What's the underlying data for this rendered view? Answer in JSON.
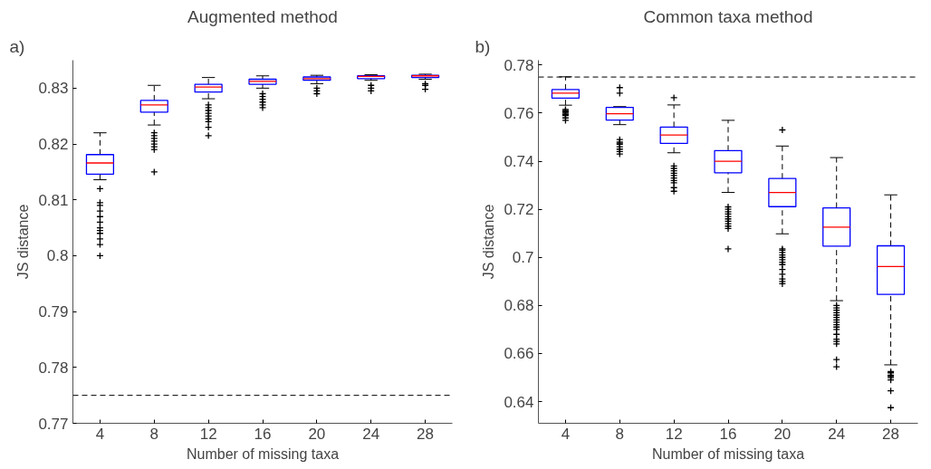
{
  "chart_data": [
    {
      "type": "box",
      "title": "Augmented method",
      "xlabel": "Number of missing taxa",
      "ylabel": "JS distance",
      "annotations": [
        "a)"
      ],
      "categories": [
        "4",
        "8",
        "12",
        "16",
        "20",
        "24",
        "28"
      ],
      "color": "#0000ff",
      "boxes": [
        {
          "low": 0.8136,
          "q1": 0.8146,
          "median": 0.8166,
          "q3": 0.8181,
          "high": 0.822,
          "outliers": [
            0.812,
            0.8095,
            0.809,
            0.808,
            0.807,
            0.806,
            0.805,
            0.8045,
            0.804,
            0.803,
            0.802,
            0.8
          ]
        },
        {
          "low": 0.8234,
          "q1": 0.8257,
          "median": 0.827,
          "q3": 0.8278,
          "high": 0.8305,
          "outliers": [
            0.822,
            0.8215,
            0.821,
            0.8205,
            0.82,
            0.8195,
            0.819,
            0.815
          ]
        },
        {
          "low": 0.8281,
          "q1": 0.8293,
          "median": 0.8302,
          "q3": 0.8307,
          "high": 0.8319,
          "outliers": [
            0.827,
            0.8265,
            0.826,
            0.8255,
            0.825,
            0.8245,
            0.824,
            0.823,
            0.8215
          ]
        },
        {
          "low": 0.83,
          "q1": 0.8307,
          "median": 0.8312,
          "q3": 0.8316,
          "high": 0.8322,
          "outliers": [
            0.829,
            0.8285,
            0.828,
            0.8275,
            0.827,
            0.8265
          ]
        },
        {
          "low": 0.8308,
          "q1": 0.8314,
          "median": 0.8317,
          "q3": 0.832,
          "high": 0.8323,
          "outliers": [
            0.83,
            0.8295,
            0.829
          ]
        },
        {
          "low": 0.8314,
          "q1": 0.8317,
          "median": 0.8321,
          "q3": 0.8322,
          "high": 0.8324,
          "outliers": [
            0.8305,
            0.83,
            0.8295
          ]
        },
        {
          "low": 0.8316,
          "q1": 0.8319,
          "median": 0.8322,
          "q3": 0.8323,
          "high": 0.8325,
          "outliers": [
            0.8308,
            0.8305,
            0.8298
          ]
        }
      ],
      "ylim": [
        0.77,
        0.835
      ],
      "yticks": [
        0.77,
        0.78,
        0.79,
        0.8,
        0.81,
        0.82,
        0.83
      ],
      "marker": "cross",
      "line_style": "dashed",
      "grid": false,
      "ref_lines": [
        {
          "axis": "y",
          "value": 0.775,
          "color": "#000000",
          "line_style": "dashed"
        }
      ]
    },
    {
      "type": "box",
      "title": "Common taxa method",
      "xlabel": "Number of missing taxa",
      "ylabel": "JS distance",
      "annotations": [
        "b)"
      ],
      "categories": [
        "4",
        "8",
        "12",
        "16",
        "20",
        "24",
        "28"
      ],
      "color": "#0000ff",
      "boxes": [
        {
          "low": 0.7633,
          "q1": 0.7662,
          "median": 0.7683,
          "q3": 0.7698,
          "high": 0.7751,
          "outliers": [
            0.7615,
            0.761,
            0.7605,
            0.76,
            0.7595,
            0.759,
            0.758,
            0.757
          ]
        },
        {
          "low": 0.7552,
          "q1": 0.7571,
          "median": 0.7597,
          "q3": 0.7624,
          "high": 0.7627,
          "outliers": [
            0.7706,
            0.7683,
            0.749,
            0.748,
            0.7475,
            0.747,
            0.746,
            0.745,
            0.744,
            0.743
          ]
        },
        {
          "low": 0.7435,
          "q1": 0.7474,
          "median": 0.7509,
          "q3": 0.7542,
          "high": 0.7634,
          "outliers": [
            0.7664,
            0.738,
            0.737,
            0.736,
            0.735,
            0.734,
            0.733,
            0.732,
            0.731,
            0.729,
            0.7275
          ]
        },
        {
          "low": 0.727,
          "q1": 0.7352,
          "median": 0.74,
          "q3": 0.7444,
          "high": 0.757,
          "outliers": [
            0.721,
            0.72,
            0.719,
            0.718,
            0.717,
            0.716,
            0.715,
            0.714,
            0.713,
            0.712,
            0.7035
          ]
        },
        {
          "low": 0.7098,
          "q1": 0.7211,
          "median": 0.727,
          "q3": 0.7328,
          "high": 0.7463,
          "outliers": [
            0.753,
            0.7035,
            0.703,
            0.702,
            0.701,
            0.7,
            0.699,
            0.698,
            0.697,
            0.695,
            0.693,
            0.691,
            0.69,
            0.689
          ]
        },
        {
          "low": 0.682,
          "q1": 0.7047,
          "median": 0.7126,
          "q3": 0.7206,
          "high": 0.7415,
          "outliers": [
            0.68,
            0.679,
            0.678,
            0.677,
            0.676,
            0.675,
            0.674,
            0.673,
            0.672,
            0.671,
            0.67,
            0.668,
            0.666,
            0.665,
            0.664,
            0.6575,
            0.6545
          ]
        },
        {
          "low": 0.6553,
          "q1": 0.6846,
          "median": 0.6962,
          "q3": 0.7048,
          "high": 0.726,
          "outliers": [
            0.6525,
            0.652,
            0.651,
            0.6505,
            0.65,
            0.649,
            0.6445,
            0.6375
          ]
        }
      ],
      "ylim": [
        0.631,
        0.782
      ],
      "yticks": [
        0.64,
        0.66,
        0.68,
        0.7,
        0.72,
        0.74,
        0.76,
        0.78
      ],
      "marker": "cross",
      "line_style": "dashed",
      "grid": false,
      "ref_lines": [
        {
          "axis": "y",
          "value": 0.775,
          "color": "#000000",
          "line_style": "dashed"
        }
      ]
    }
  ]
}
